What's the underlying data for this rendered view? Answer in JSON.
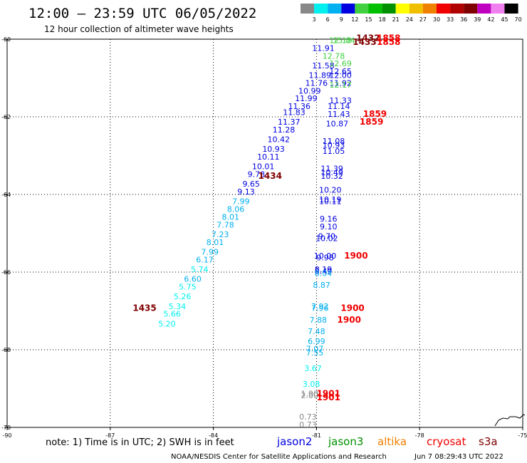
{
  "title": "12:00 – 23:59 UTC 06/05/2022",
  "subtitle": "12 hour collection of altimeter wave heights",
  "note": "note:  1) Time is in UTC;  2) SWH is in feet",
  "footer_left": "NOAA/NESDIS Center for Satellite Applications and Research",
  "footer_right": "Jun  7 08:29:43 UTC 2022",
  "colorbar": {
    "unit": "(ft)",
    "labels": [
      "3",
      "6",
      "9",
      "12",
      "15",
      "18",
      "21",
      "24",
      "27",
      "30",
      "33",
      "36",
      "39",
      "42",
      "45",
      "70"
    ],
    "colors": [
      "#888888",
      "#00f0f0",
      "#00b0f0",
      "#0000e0",
      "#40d040",
      "#00c000",
      "#009000",
      "#ffff00",
      "#f0c000",
      "#f08000",
      "#f00000",
      "#b00000",
      "#800000",
      "#c000c0",
      "#f080f0",
      "#000000"
    ]
  },
  "satellites": [
    {
      "name": "jason2",
      "color": "#0000e0"
    },
    {
      "name": "jason3",
      "color": "#009000"
    },
    {
      "name": "altika",
      "color": "#f08000"
    },
    {
      "name": "cryosat",
      "color": "#f00000"
    },
    {
      "name": "s3a",
      "color": "#800000"
    }
  ],
  "chart_data": {
    "type": "scatter",
    "title": "12:00 – 23:59 UTC 06/05/2022",
    "subtitle": "12 hour collection of altimeter wave heights",
    "xlim": [
      -90,
      -75
    ],
    "ylim": [
      -70,
      -60
    ],
    "xticks": [
      -90,
      -87,
      -84,
      -81,
      -78,
      -75
    ],
    "yticks": [
      -60,
      -62,
      -64,
      -66,
      -68,
      -70
    ],
    "grid": true,
    "points": [
      {
        "x": -80.3,
        "y": -60.1,
        "label": "12.18",
        "color": "#40d040"
      },
      {
        "x": -80.8,
        "y": -60.3,
        "label": "11.91",
        "color": "#0000e0"
      },
      {
        "x": -80.5,
        "y": -60.5,
        "label": "12.78",
        "color": "#40d040"
      },
      {
        "x": -80.8,
        "y": -60.75,
        "label": "11.58",
        "color": "#0000e0"
      },
      {
        "x": -80.9,
        "y": -61.0,
        "label": "11.89",
        "color": "#0000e0"
      },
      {
        "x": -81.0,
        "y": -61.2,
        "label": "11.76",
        "color": "#0000e0"
      },
      {
        "x": -81.2,
        "y": -61.4,
        "label": "10.99",
        "color": "#0000e0"
      },
      {
        "x": -81.3,
        "y": -61.6,
        "label": "11.99",
        "color": "#0000e0"
      },
      {
        "x": -81.5,
        "y": -61.8,
        "label": "11.36",
        "color": "#0000e0"
      },
      {
        "x": -81.65,
        "y": -61.95,
        "label": "11.83",
        "color": "#0000e0"
      },
      {
        "x": -81.8,
        "y": -62.2,
        "label": "11.37",
        "color": "#0000e0"
      },
      {
        "x": -81.95,
        "y": -62.4,
        "label": "11.28",
        "color": "#0000e0"
      },
      {
        "x": -82.1,
        "y": -62.65,
        "label": "10.42",
        "color": "#0000e0"
      },
      {
        "x": -82.25,
        "y": -62.9,
        "label": "10.93",
        "color": "#0000e0"
      },
      {
        "x": -82.4,
        "y": -63.1,
        "label": "10.11",
        "color": "#0000e0"
      },
      {
        "x": -82.55,
        "y": -63.35,
        "label": "10.01",
        "color": "#0000e0"
      },
      {
        "x": -82.75,
        "y": -63.55,
        "label": "9.78",
        "color": "#0000e0"
      },
      {
        "x": -82.9,
        "y": -63.8,
        "label": "9.65",
        "color": "#0000e0"
      },
      {
        "x": -83.05,
        "y": -64.0,
        "label": "9.13",
        "color": "#0000e0"
      },
      {
        "x": -83.2,
        "y": -64.25,
        "label": "7.99",
        "color": "#00b0f0"
      },
      {
        "x": -83.35,
        "y": -64.45,
        "label": "8.06",
        "color": "#00b0f0"
      },
      {
        "x": -83.5,
        "y": -64.65,
        "label": "8.01",
        "color": "#00b0f0"
      },
      {
        "x": -83.65,
        "y": -64.85,
        "label": "7.78",
        "color": "#00b0f0"
      },
      {
        "x": -83.8,
        "y": -65.1,
        "label": "7.23",
        "color": "#00b0f0"
      },
      {
        "x": -83.95,
        "y": -65.3,
        "label": "8.01",
        "color": "#00b0f0"
      },
      {
        "x": -84.1,
        "y": -65.55,
        "label": "7.99",
        "color": "#00b0f0"
      },
      {
        "x": -84.25,
        "y": -65.75,
        "label": "6.17",
        "color": "#00b0f0"
      },
      {
        "x": -84.4,
        "y": -66.0,
        "label": "5.74",
        "color": "#00f0f0"
      },
      {
        "x": -84.6,
        "y": -66.25,
        "label": "6.60",
        "color": "#00b0f0"
      },
      {
        "x": -84.75,
        "y": -66.45,
        "label": "5.75",
        "color": "#00f0f0"
      },
      {
        "x": -84.9,
        "y": -66.7,
        "label": "5.26",
        "color": "#00f0f0"
      },
      {
        "x": -85.05,
        "y": -66.95,
        "label": "5.34",
        "color": "#00f0f0"
      },
      {
        "x": -85.2,
        "y": -67.15,
        "label": "5.66",
        "color": "#00f0f0"
      },
      {
        "x": -85.35,
        "y": -67.4,
        "label": "5.20",
        "color": "#00f0f0"
      },
      {
        "x": -80.2,
        "y": -60.1,
        "label": "15.04",
        "color": "#40d040"
      },
      {
        "x": -80.3,
        "y": -60.7,
        "label": "12.69",
        "color": "#40d040"
      },
      {
        "x": -80.3,
        "y": -60.9,
        "label": "12.65",
        "color": "#0000e0"
      },
      {
        "x": -80.3,
        "y": -61.0,
        "label": "12.00",
        "color": "#0000e0"
      },
      {
        "x": -80.3,
        "y": -61.2,
        "label": "11.92",
        "color": "#0000e0"
      },
      {
        "x": -80.3,
        "y": -61.25,
        "label": "12.17",
        "color": "#40d040"
      },
      {
        "x": -80.3,
        "y": -61.65,
        "label": "11.33",
        "color": "#0000e0"
      },
      {
        "x": -80.35,
        "y": -61.8,
        "label": "11.14",
        "color": "#0000e0"
      },
      {
        "x": -80.35,
        "y": -62.0,
        "label": "11.43",
        "color": "#0000e0"
      },
      {
        "x": -80.4,
        "y": -62.25,
        "label": "10.87",
        "color": "#0000e0"
      },
      {
        "x": -80.5,
        "y": -62.7,
        "label": "11.08",
        "color": "#0000e0"
      },
      {
        "x": -80.5,
        "y": -62.8,
        "label": "10.93",
        "color": "#0000e0"
      },
      {
        "x": -80.5,
        "y": -62.95,
        "label": "11.05",
        "color": "#0000e0"
      },
      {
        "x": -80.55,
        "y": -63.4,
        "label": "11.39",
        "color": "#0000e0"
      },
      {
        "x": -80.55,
        "y": -63.5,
        "label": "10.49",
        "color": "#0000e0"
      },
      {
        "x": -80.55,
        "y": -63.6,
        "label": "10.32",
        "color": "#0000e0"
      },
      {
        "x": -80.6,
        "y": -63.95,
        "label": "10.20",
        "color": "#0000e0"
      },
      {
        "x": -80.6,
        "y": -64.2,
        "label": "10.19",
        "color": "#0000e0"
      },
      {
        "x": -80.6,
        "y": -64.25,
        "label": "10.11",
        "color": "#0000e0"
      },
      {
        "x": -80.65,
        "y": -64.7,
        "label": "9.16",
        "color": "#0000e0"
      },
      {
        "x": -80.65,
        "y": -64.9,
        "label": "9.10",
        "color": "#0000e0"
      },
      {
        "x": -80.7,
        "y": -65.15,
        "label": "9.70",
        "color": "#0000e0"
      },
      {
        "x": -80.7,
        "y": -65.2,
        "label": "10.02",
        "color": "#0000e0"
      },
      {
        "x": -80.75,
        "y": -65.65,
        "label": "10.00",
        "color": "#0000e0"
      },
      {
        "x": -80.75,
        "y": -65.7,
        "label": "9.98",
        "color": "#0000e0"
      },
      {
        "x": -80.8,
        "y": -66.0,
        "label": "8.19",
        "color": "#0000e0"
      },
      {
        "x": -80.8,
        "y": -66.05,
        "label": "8.49",
        "color": "#0000e0"
      },
      {
        "x": -80.8,
        "y": -66.1,
        "label": "8.04",
        "color": "#00b0f0"
      },
      {
        "x": -80.85,
        "y": -66.4,
        "label": "8.87",
        "color": "#00b0f0"
      },
      {
        "x": -80.9,
        "y": -66.95,
        "label": "7.92",
        "color": "#00b0f0"
      },
      {
        "x": -80.9,
        "y": -67.0,
        "label": "7.96",
        "color": "#00b0f0"
      },
      {
        "x": -80.95,
        "y": -67.3,
        "label": "7.88",
        "color": "#00b0f0"
      },
      {
        "x": -81.0,
        "y": -67.6,
        "label": "7.48",
        "color": "#00b0f0"
      },
      {
        "x": -81.0,
        "y": -67.85,
        "label": "6.99",
        "color": "#00b0f0"
      },
      {
        "x": -81.05,
        "y": -68.05,
        "label": "7.07",
        "color": "#00b0f0"
      },
      {
        "x": -81.05,
        "y": -68.15,
        "label": "7.55",
        "color": "#00b0f0"
      },
      {
        "x": -81.1,
        "y": -68.55,
        "label": "3.67",
        "color": "#00f0f0"
      },
      {
        "x": -81.15,
        "y": -68.95,
        "label": "3.08",
        "color": "#00f0f0"
      },
      {
        "x": -81.2,
        "y": -69.2,
        "label": "1.90",
        "color": "#888888"
      },
      {
        "x": -81.2,
        "y": -69.25,
        "label": "2.00",
        "color": "#888888"
      },
      {
        "x": -81.25,
        "y": -69.8,
        "label": "0.73",
        "color": "#888888"
      },
      {
        "x": -81.25,
        "y": -70.0,
        "label": "0.73",
        "color": "#888888"
      }
    ],
    "pass_times": [
      {
        "x": -79.5,
        "y": -60.05,
        "label": "1432",
        "color": "#800000"
      },
      {
        "x": -79.6,
        "y": -60.15,
        "label": "1433",
        "color": "#800000"
      },
      {
        "x": -82.35,
        "y": -63.6,
        "label": "1434",
        "color": "#800000"
      },
      {
        "x": -86.0,
        "y": -67.0,
        "label": "1435",
        "color": "#800000"
      },
      {
        "x": -78.9,
        "y": -60.05,
        "label": "1858",
        "color": "#f00000"
      },
      {
        "x": -78.9,
        "y": -60.15,
        "label": "1858",
        "color": "#f00000"
      },
      {
        "x": -79.3,
        "y": -62.0,
        "label": "1859",
        "color": "#f00000"
      },
      {
        "x": -79.4,
        "y": -62.2,
        "label": "1859",
        "color": "#f00000"
      },
      {
        "x": -79.85,
        "y": -65.65,
        "label": "1900",
        "color": "#f00000"
      },
      {
        "x": -79.95,
        "y": -67.0,
        "label": "1900",
        "color": "#f00000"
      },
      {
        "x": -80.05,
        "y": -67.3,
        "label": "1900",
        "color": "#f00000"
      },
      {
        "x": -80.65,
        "y": -69.2,
        "label": "1901",
        "color": "#f00000"
      },
      {
        "x": -80.65,
        "y": -69.3,
        "label": "1901",
        "color": "#f00000"
      }
    ]
  }
}
